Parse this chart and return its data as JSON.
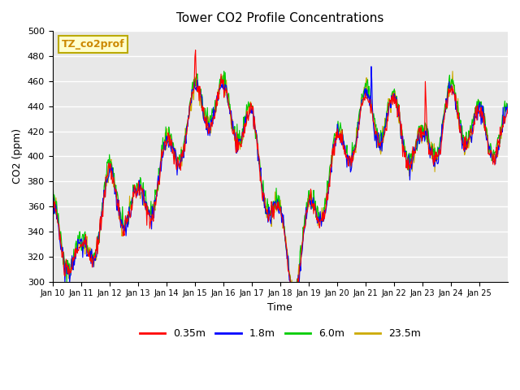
{
  "title": "Tower CO2 Profile Concentrations",
  "xlabel": "Time",
  "ylabel": "CO2 (ppm)",
  "ylim": [
    300,
    500
  ],
  "yticks": [
    300,
    320,
    340,
    360,
    380,
    400,
    420,
    440,
    460,
    480,
    500
  ],
  "legend_label": "TZ_co2prof",
  "series_labels": [
    "0.35m",
    "1.8m",
    "6.0m",
    "23.5m"
  ],
  "series_colors": [
    "#ff0000",
    "#0000ff",
    "#00cc00",
    "#ccaa00"
  ],
  "background_color": "#e8e8e8",
  "n_days": 16,
  "xtick_labels": [
    "Jan 10",
    "Jan 11",
    "Jan 12",
    "Jan 13",
    "Jan 14",
    "Jan 15",
    "Jan 16",
    "Jan 17",
    "Jan 18",
    "Jan 19",
    "Jan 20",
    "Jan 21",
    "Jan 22",
    "Jan 23",
    "Jan 24",
    "Jan 25"
  ]
}
